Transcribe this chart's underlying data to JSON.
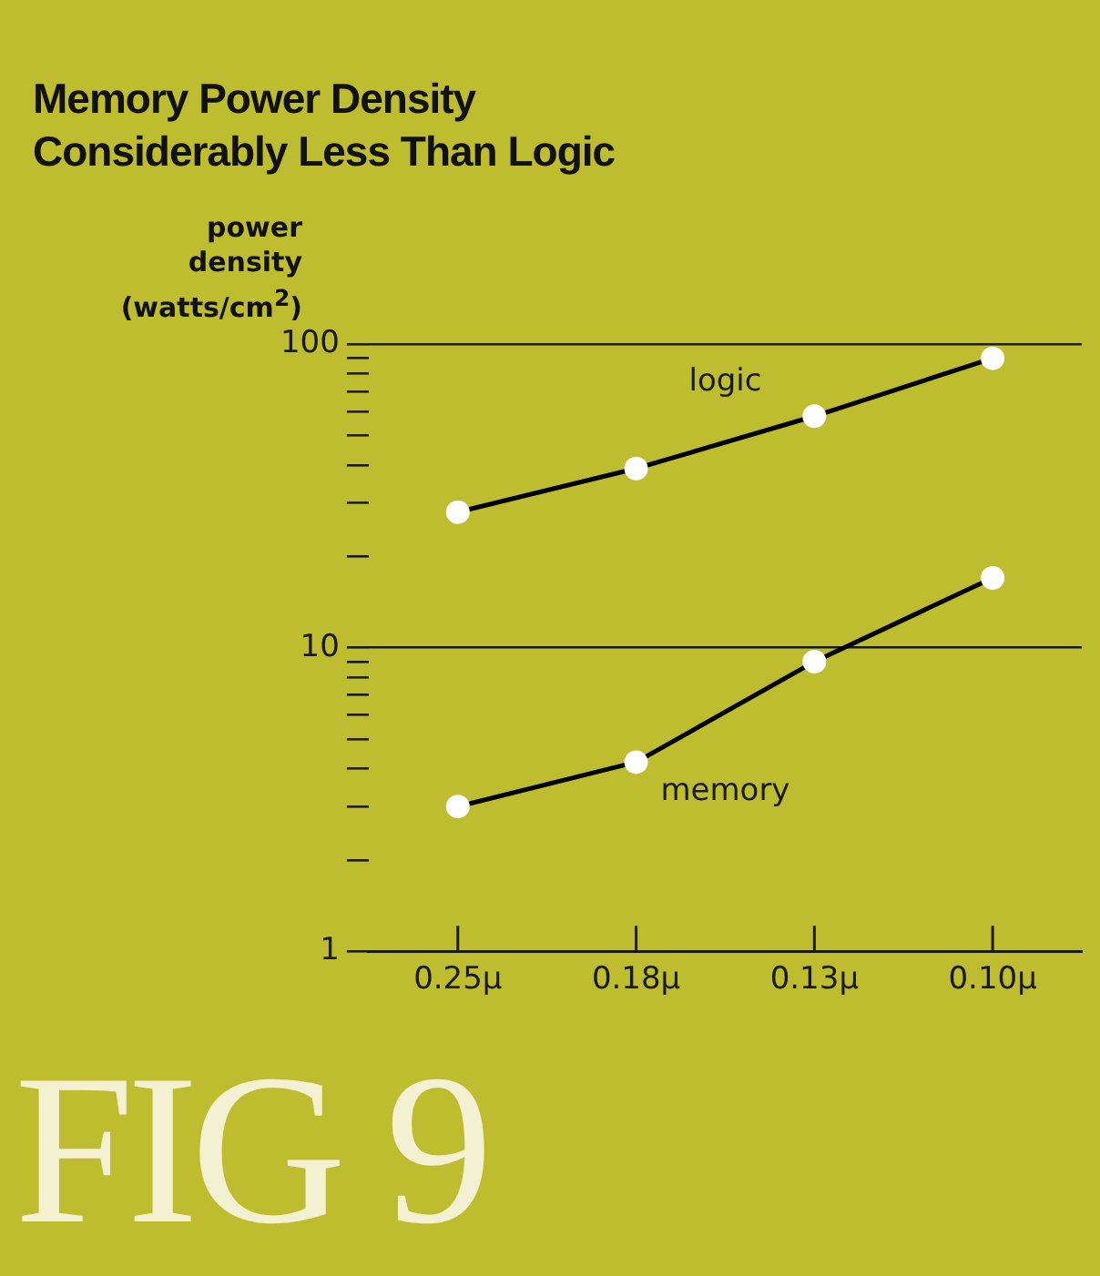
{
  "chart_data": {
    "type": "line",
    "title": "Memory Power Density\nConsiderably Less Than Logic",
    "ylabel": "power\ndensity\n(watts/cm$^{2}$)",
    "annotations": [
      "FIG 9"
    ],
    "categories": [
      "0.25μ",
      "0.18μ",
      "0.13μ",
      "0.10μ"
    ],
    "series": [
      {
        "name": "logic",
        "color": "#000000",
        "values": [
          28,
          39,
          58,
          90
        ]
      },
      {
        "name": "memory",
        "color": "#000000",
        "values": [
          3,
          4.2,
          9,
          17
        ]
      }
    ],
    "log": "y",
    "ylim": [
      1,
      100
    ],
    "yticks": [
      1,
      {
        "value": 2,
        "label": null
      },
      {
        "value": 3,
        "label": null
      },
      {
        "value": 4,
        "label": null
      },
      {
        "value": 5,
        "label": null
      },
      {
        "value": 6,
        "label": null
      },
      {
        "value": 7,
        "label": null
      },
      {
        "value": 8,
        "label": null
      },
      {
        "value": 9,
        "label": null
      },
      10,
      {
        "value": 20,
        "label": null
      },
      {
        "value": 30,
        "label": null
      },
      {
        "value": 40,
        "label": null
      },
      {
        "value": 50,
        "label": null
      },
      {
        "value": 60,
        "label": null
      },
      {
        "value": 70,
        "label": null
      },
      {
        "value": 80,
        "label": null
      },
      {
        "value": 90,
        "label": null
      },
      100
    ],
    "grid": "y",
    "legend": false,
    "marker": "circle",
    "line_style": "solid"
  }
}
